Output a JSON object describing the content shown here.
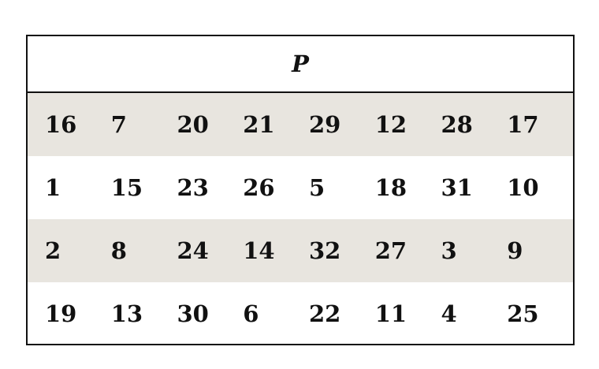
{
  "table": {
    "title": "P",
    "rows": [
      [
        "16",
        "7",
        "20",
        "21",
        "29",
        "12",
        "28",
        "17"
      ],
      [
        "1",
        "15",
        "23",
        "26",
        "5",
        "18",
        "31",
        "10"
      ],
      [
        "2",
        "8",
        "24",
        "14",
        "32",
        "27",
        "3",
        "9"
      ],
      [
        "19",
        "13",
        "30",
        "6",
        "22",
        "11",
        "4",
        "25"
      ]
    ],
    "shaded_row_color": "#e8e5df"
  }
}
